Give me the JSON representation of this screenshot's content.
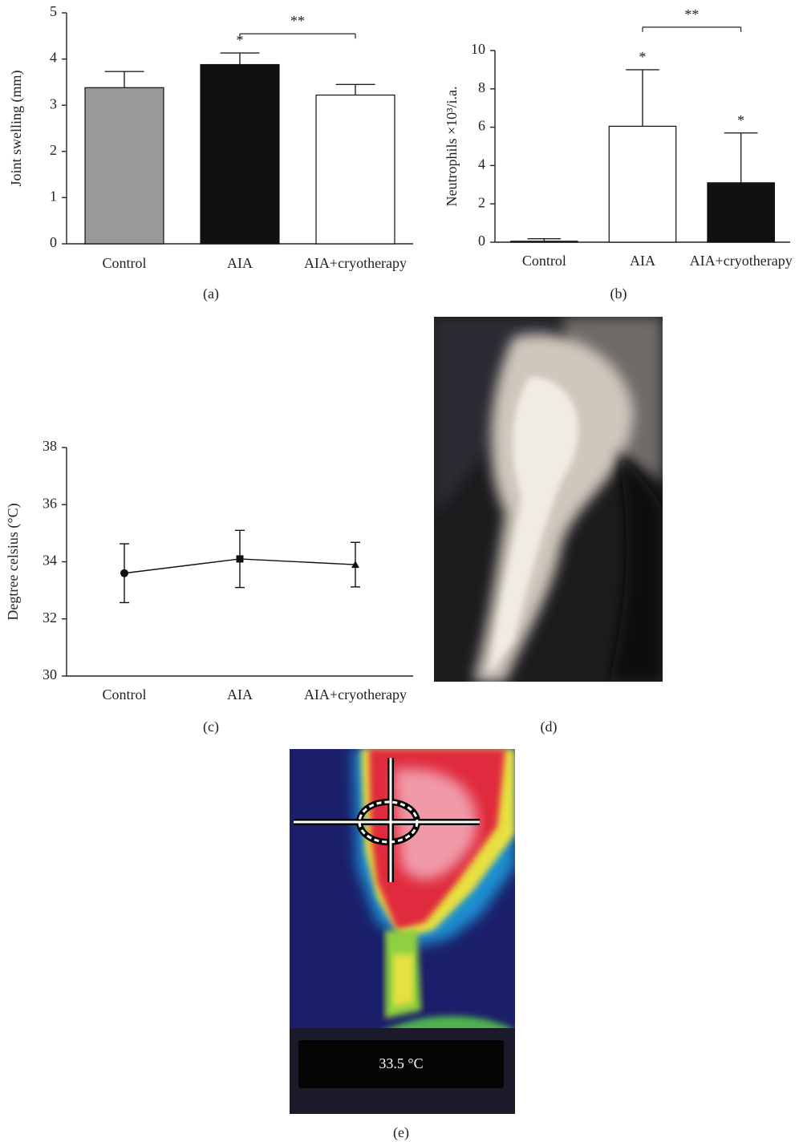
{
  "chart_data": [
    {
      "type": "bar",
      "panel_label": "(a)",
      "y_label": "Joint swelling (mm)",
      "categories": [
        "Control",
        "AIA",
        "AIA+cryotherapy"
      ],
      "values": [
        3.38,
        3.88,
        3.22
      ],
      "errors": [
        0.35,
        0.25,
        0.23
      ],
      "colors": [
        "#999999",
        "#111111",
        "#ffffff"
      ],
      "significance": [
        null,
        "*",
        null
      ],
      "comparisons": [
        {
          "label": "**",
          "pair": [
            "AIA",
            "AIA+cryotherapy"
          ]
        }
      ],
      "ylim": [
        0,
        5
      ],
      "yticks": [
        0,
        1,
        2,
        3,
        4,
        5
      ],
      "grid": false
    },
    {
      "type": "bar",
      "panel_label": "(b)",
      "y_label": "Neutrophils ×10³/i.a.",
      "categories": [
        "Control",
        "AIA",
        "AIA+cryotherapy"
      ],
      "values": [
        0.05,
        6.05,
        3.1
      ],
      "errors": [
        0.13,
        2.95,
        2.6
      ],
      "colors": [
        "#ffffff",
        "#ffffff",
        "#111111"
      ],
      "significance": [
        null,
        "*",
        "*"
      ],
      "comparisons": [
        {
          "label": "**",
          "pair": [
            "AIA",
            "AIA+cryotherapy"
          ]
        }
      ],
      "ylim": [
        0,
        10
      ],
      "yticks": [
        0,
        2,
        4,
        6,
        8,
        10
      ],
      "grid": false
    },
    {
      "type": "line",
      "panel_label": "(c)",
      "y_label": "Degtree celsius (°C)",
      "categories": [
        "Control",
        "AIA",
        "AIA+cryotherapy"
      ],
      "values": [
        33.6,
        34.1,
        33.9
      ],
      "errors": [
        1.03,
        1.0,
        0.78
      ],
      "markers": [
        "circle",
        "square",
        "triangle"
      ],
      "color": "#111111",
      "ylim": [
        30,
        38
      ],
      "yticks": [
        30,
        32,
        34,
        36,
        38
      ],
      "grid": false
    }
  ],
  "panels": {
    "d": {
      "label": "(d)"
    },
    "e": {
      "label": "(e)",
      "reading": "33.5 °C"
    }
  }
}
